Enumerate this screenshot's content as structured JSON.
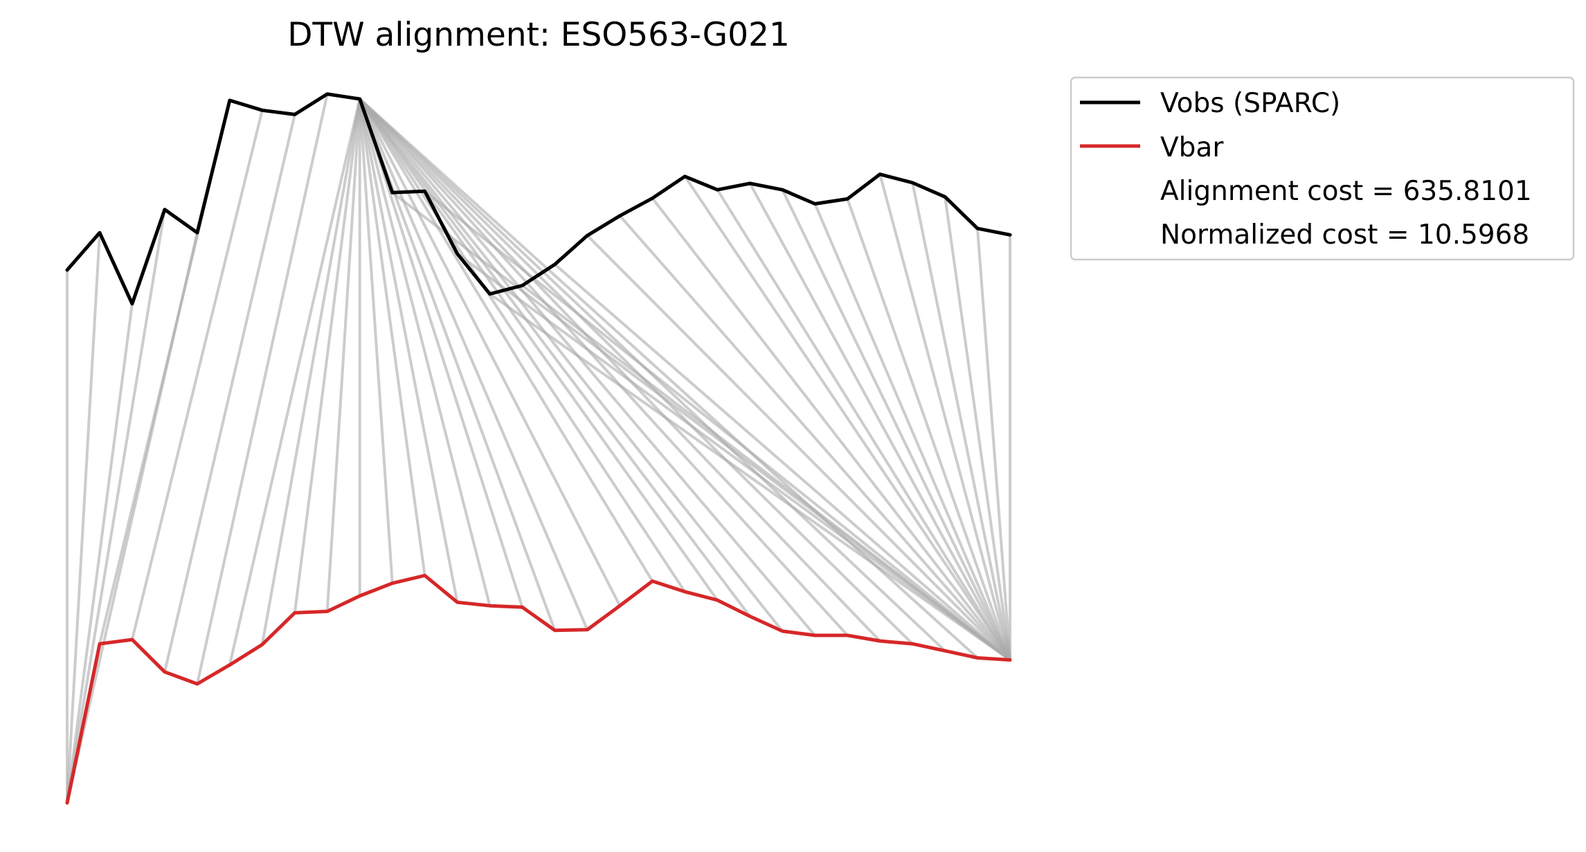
{
  "chart_data": {
    "type": "line",
    "title": "DTW alignment: ESO563-G021",
    "xlabel": "",
    "ylabel": "",
    "axes_visible": false,
    "grid": false,
    "legend_position": "outside top-right",
    "x_range": [
      0,
      29
    ],
    "y_range": [
      0,
      1
    ],
    "series": [
      {
        "name": "Vobs (SPARC)",
        "color": "#000000",
        "values": [
          0.757,
          0.81,
          0.709,
          0.843,
          0.81,
          0.998,
          0.984,
          0.978,
          1.007,
          1.0,
          0.867,
          0.869,
          0.78,
          0.723,
          0.735,
          0.765,
          0.806,
          0.834,
          0.859,
          0.89,
          0.871,
          0.88,
          0.871,
          0.851,
          0.858,
          0.893,
          0.881,
          0.861,
          0.816,
          0.807
        ]
      },
      {
        "name": "Vbar",
        "color": "#d62728",
        "values": [
          0.0,
          0.226,
          0.232,
          0.186,
          0.169,
          0.196,
          0.225,
          0.27,
          0.272,
          0.294,
          0.312,
          0.323,
          0.285,
          0.28,
          0.278,
          0.245,
          0.246,
          0.28,
          0.315,
          0.3,
          0.288,
          0.265,
          0.244,
          0.238,
          0.238,
          0.23,
          0.226,
          0.216,
          0.206,
          0.203
        ]
      }
    ],
    "alignment_path": [
      [
        0,
        0
      ],
      [
        1,
        0
      ],
      [
        2,
        0
      ],
      [
        3,
        0
      ],
      [
        4,
        0
      ],
      [
        5,
        1
      ],
      [
        6,
        2
      ],
      [
        7,
        3
      ],
      [
        8,
        4
      ],
      [
        9,
        5
      ],
      [
        9,
        6
      ],
      [
        9,
        7
      ],
      [
        9,
        8
      ],
      [
        9,
        9
      ],
      [
        9,
        10
      ],
      [
        9,
        11
      ],
      [
        9,
        12
      ],
      [
        9,
        13
      ],
      [
        9,
        14
      ],
      [
        9,
        15
      ],
      [
        9,
        16
      ],
      [
        9,
        17
      ],
      [
        9,
        18
      ],
      [
        9,
        19
      ],
      [
        9,
        20
      ],
      [
        9,
        21
      ],
      [
        9,
        22
      ],
      [
        9,
        23
      ],
      [
        9,
        24
      ],
      [
        9,
        25
      ],
      [
        9,
        26
      ],
      [
        9,
        27
      ],
      [
        9,
        28
      ],
      [
        10,
        29
      ],
      [
        11,
        29
      ],
      [
        12,
        29
      ],
      [
        13,
        29
      ],
      [
        14,
        29
      ],
      [
        15,
        29
      ],
      [
        16,
        29
      ],
      [
        17,
        29
      ],
      [
        18,
        29
      ],
      [
        19,
        29
      ],
      [
        20,
        29
      ],
      [
        21,
        29
      ],
      [
        22,
        29
      ],
      [
        23,
        29
      ],
      [
        24,
        29
      ],
      [
        25,
        29
      ],
      [
        26,
        29
      ],
      [
        27,
        29
      ],
      [
        28,
        29
      ],
      [
        29,
        29
      ]
    ],
    "alignment_line_color": "#aaaaaa"
  },
  "legend": {
    "items": [
      {
        "label": "Vobs (SPARC)",
        "color": "#000000",
        "has_line": true
      },
      {
        "label": "Vbar",
        "color": "#d62728",
        "has_line": true
      },
      {
        "label": "Alignment cost = 635.8101",
        "has_line": false
      },
      {
        "label": "Normalized cost = 10.5968",
        "has_line": false
      }
    ]
  }
}
